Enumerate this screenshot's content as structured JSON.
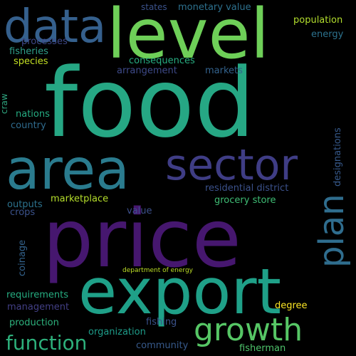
{
  "words": [
    {
      "text": "food",
      "color": "#26a784"
    },
    {
      "text": "price",
      "color": "#46176f"
    },
    {
      "text": "export",
      "color": "#1fa088"
    },
    {
      "text": "level",
      "color": "#6ecf58"
    },
    {
      "text": "area",
      "color": "#2a7b8e"
    },
    {
      "text": "data",
      "color": "#35608d"
    },
    {
      "text": "sector",
      "color": "#3f3d85"
    },
    {
      "text": "growth",
      "color": "#56c665"
    },
    {
      "text": "plan",
      "color": "#2f6d8e"
    },
    {
      "text": "function",
      "color": "#2db07b"
    },
    {
      "text": "population",
      "color": "#b2dd2d"
    },
    {
      "text": "monetary value",
      "color": "#2d718e"
    },
    {
      "text": "states",
      "color": "#3b528b"
    },
    {
      "text": "energy",
      "color": "#2c728e"
    },
    {
      "text": "processes",
      "color": "#3e4989"
    },
    {
      "text": "fisheries",
      "color": "#2f9f8b"
    },
    {
      "text": "species",
      "color": "#c2df23"
    },
    {
      "text": "consequences",
      "color": "#27ad81"
    },
    {
      "text": "arrangement",
      "color": "#3e4a89"
    },
    {
      "text": "markets",
      "color": "#33628d"
    },
    {
      "text": "craw",
      "color": "#2ea57f"
    },
    {
      "text": "nations",
      "color": "#25ac82"
    },
    {
      "text": "country",
      "color": "#2f6b8e"
    },
    {
      "text": "designations",
      "color": "#375a8c"
    },
    {
      "text": "residential district",
      "color": "#3b518b"
    },
    {
      "text": "grocery store",
      "color": "#3ebc74"
    },
    {
      "text": "marketplace",
      "color": "#b5de2b"
    },
    {
      "text": "outputs",
      "color": "#2c728e"
    },
    {
      "text": "crops",
      "color": "#3b528b"
    },
    {
      "text": "value",
      "color": "#3c508b"
    },
    {
      "text": "coinage",
      "color": "#33638d"
    },
    {
      "text": "department of energy",
      "color": "#bddf26"
    },
    {
      "text": "requirements",
      "color": "#26ad81"
    },
    {
      "text": "management",
      "color": "#423f85"
    },
    {
      "text": "degree",
      "color": "#fde725"
    },
    {
      "text": "production",
      "color": "#2db27d"
    },
    {
      "text": "fishing",
      "color": "#3b528b"
    },
    {
      "text": "organization",
      "color": "#1e9c89"
    },
    {
      "text": "community",
      "color": "#375a8c"
    },
    {
      "text": "fisherman",
      "color": "#4ec36b"
    }
  ]
}
